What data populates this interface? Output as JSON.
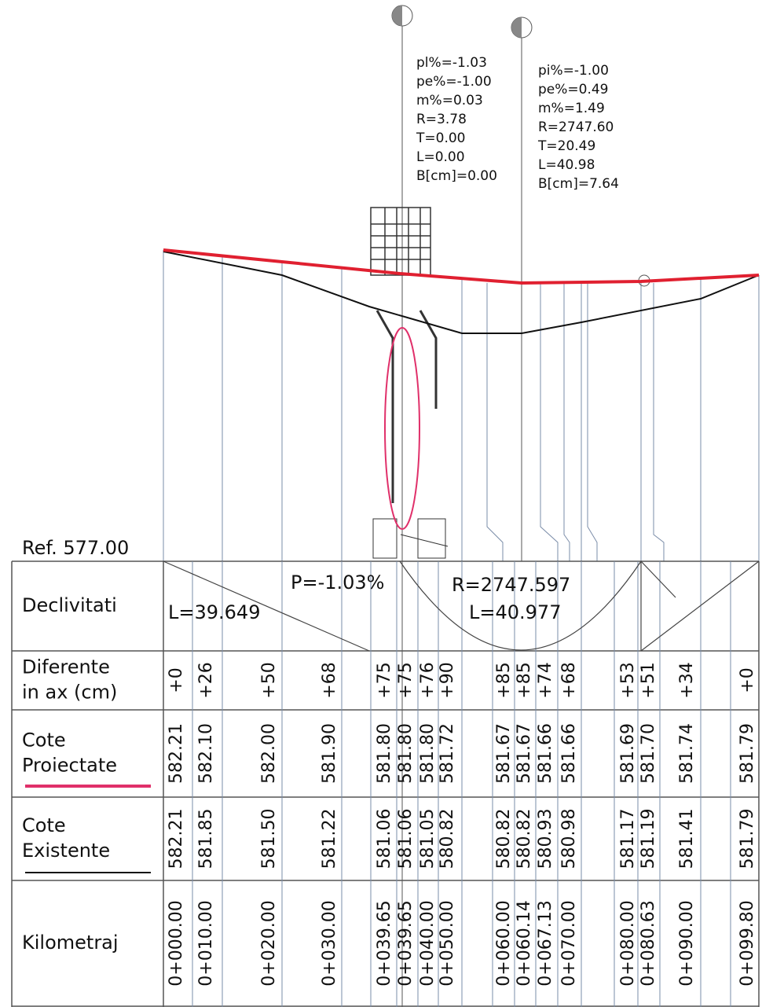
{
  "reference": "Ref. 577.00",
  "annotations": [
    {
      "lines": [
        "pl%=-1.03",
        "pe%=-1.00",
        "m%=0.03",
        "R=3.78",
        "T=0.00",
        "L=0.00",
        "B[cm]=0.00"
      ]
    },
    {
      "lines": [
        "pi%=-1.00",
        "pe%=0.49",
        "m%=1.49",
        "R=2747.60",
        "T=20.49",
        "L=40.98",
        "B[cm]=7.64"
      ]
    }
  ],
  "declivitati": {
    "label": "Declivitati",
    "slope": "P=-1.03%",
    "slope_length": "L=39.649",
    "radius": "R=2747.597",
    "curve_length": "L=40.977"
  },
  "table": {
    "rows": [
      {
        "label": [
          "Diferente",
          "in ax (cm)"
        ],
        "cells": [
          "+0",
          "+26",
          "+50",
          "+68",
          "+75",
          "+75",
          "+76",
          "+90",
          "+85",
          "+85",
          "+74",
          "+68",
          "+53",
          "+51",
          "+34",
          "+0"
        ]
      },
      {
        "label": [
          "Cote",
          "Proiectate"
        ],
        "cells": [
          "582.21",
          "582.10",
          "582.00",
          "581.90",
          "581.80",
          "581.80",
          "581.80",
          "581.72",
          "581.67",
          "581.67",
          "581.66",
          "581.66",
          "581.69",
          "581.70",
          "581.74",
          "581.79"
        ]
      },
      {
        "label": [
          "Cote",
          "Existente"
        ],
        "cells": [
          "582.21",
          "581.85",
          "581.50",
          "581.22",
          "581.06",
          "581.06",
          "581.05",
          "580.82",
          "580.82",
          "580.82",
          "580.93",
          "580.98",
          "581.17",
          "581.19",
          "581.41",
          "581.79"
        ]
      },
      {
        "label": [
          "Kilometraj"
        ],
        "cells": [
          "0+000.00",
          "0+010.00",
          "0+020.00",
          "0+030.00",
          "0+039.65",
          "0+039.65",
          "0+040.00",
          "0+050.00",
          "0+060.00",
          "0+060.14",
          "0+067.13",
          "0+070.00",
          "0+080.00",
          "0+080.63",
          "0+090.00",
          "0+099.80"
        ]
      }
    ]
  }
}
